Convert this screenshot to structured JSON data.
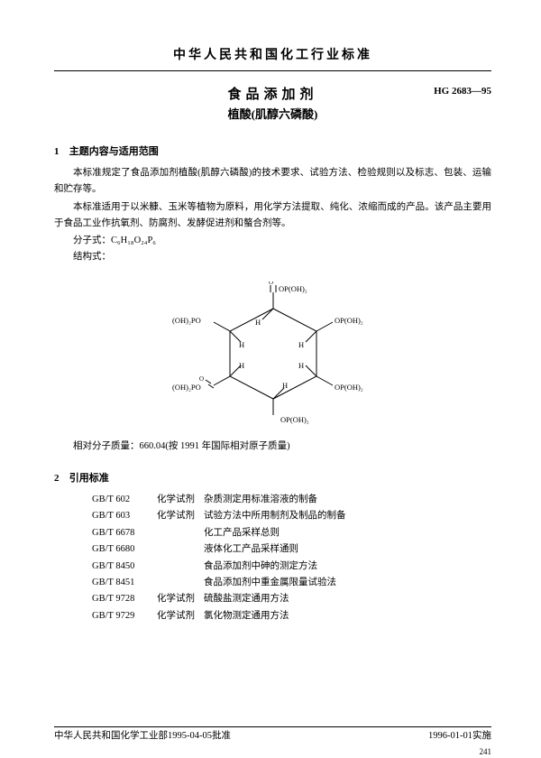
{
  "header": {
    "org_title": "中华人民共和国化工行业标准",
    "main_title": "食品添加剂",
    "sub_title": "植酸(肌醇六磷酸)",
    "std_code": "HG 2683—95"
  },
  "section1": {
    "num": "1",
    "title": "主题内容与适用范围",
    "para1": "本标准规定了食品添加剂植酸(肌醇六磷酸)的技术要求、试验方法、检验规则以及标志、包装、运输和贮存等。",
    "para2": "本标准适用于以米糠、玉米等植物为原料，用化学方法提取、纯化、浓缩而成的产品。该产品主要用于食品工业作抗氧剂、防腐剂、发酵促进剂和螯合剂等。",
    "formula_label": "分子式：",
    "formula_value": "C₆H₁₈O₂₄P₆",
    "struct_label": "结构式：",
    "mass_line": "相对分子质量：660.04(按 1991 年国际相对原子质量)"
  },
  "diagram": {
    "labels": {
      "opoh2": "OP(OH)₂",
      "oh2po": "(OH)₂PO",
      "h": "H",
      "o_top1": "O",
      "o_top2": "O",
      "o_left": "O",
      "o_right": "O"
    },
    "colors": {
      "stroke": "#000000"
    }
  },
  "section2": {
    "num": "2",
    "title": "引用标准",
    "refs": [
      {
        "code": "GB/T 602",
        "label": "化学试剂",
        "desc": "杂质测定用标准溶液的制备"
      },
      {
        "code": "GB/T 603",
        "label": "化学试剂",
        "desc": "试验方法中所用制剂及制品的制备"
      },
      {
        "code": "GB/T 6678",
        "label": "",
        "desc": "化工产品采样总则"
      },
      {
        "code": "GB/T 6680",
        "label": "",
        "desc": "液体化工产品采样通则"
      },
      {
        "code": "GB/T 8450",
        "label": "",
        "desc": "食品添加剂中砷的测定方法"
      },
      {
        "code": "GB/T 8451",
        "label": "",
        "desc": "食品添加剂中重金属限量试验法"
      },
      {
        "code": "GB/T 9728",
        "label": "化学试剂",
        "desc": "硫酸盐测定通用方法"
      },
      {
        "code": "GB/T 9729",
        "label": "化学试剂",
        "desc": "氯化物测定通用方法"
      }
    ]
  },
  "footer": {
    "left": "中华人民共和国化学工业部1995-04-05批准",
    "right": "1996-01-01实施",
    "pagenum": "241"
  }
}
